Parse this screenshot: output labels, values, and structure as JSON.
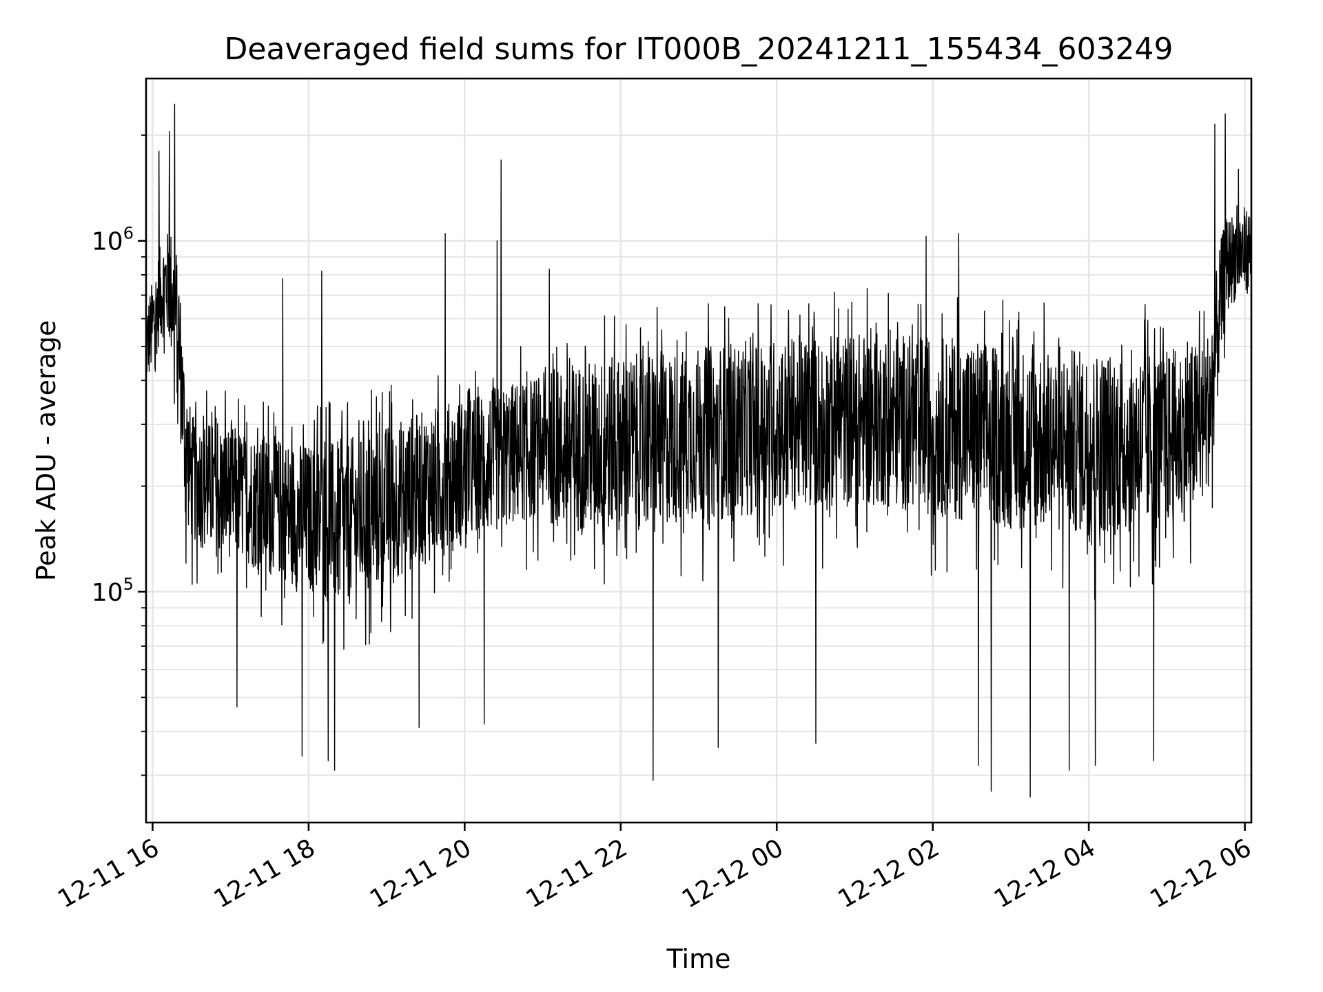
{
  "chart_data": {
    "type": "line",
    "title": "Deaveraged field sums for IT000B_20241211_155434_603249",
    "xlabel": "Time",
    "ylabel": "Peak ADU - average",
    "y_scale": "log",
    "ylim": [
      22000,
      2900000
    ],
    "xlim": [
      "2024-12-11 15:55",
      "2024-12-12 06:05"
    ],
    "x_ticks": [
      {
        "value": "2024-12-11 16:00",
        "label": "12-11 16"
      },
      {
        "value": "2024-12-11 18:00",
        "label": "12-11 18"
      },
      {
        "value": "2024-12-11 20:00",
        "label": "12-11 20"
      },
      {
        "value": "2024-12-11 22:00",
        "label": "12-11 22"
      },
      {
        "value": "2024-12-12 00:00",
        "label": "12-12 00"
      },
      {
        "value": "2024-12-12 02:00",
        "label": "12-12 02"
      },
      {
        "value": "2024-12-12 04:00",
        "label": "12-12 04"
      },
      {
        "value": "2024-12-12 06:00",
        "label": "12-12 06"
      }
    ],
    "y_ticks": [
      {
        "value": 100000,
        "base": "10",
        "exp": "5"
      },
      {
        "value": 1000000,
        "base": "10",
        "exp": "6"
      }
    ],
    "grid": true,
    "series": [
      {
        "color": "#000000",
        "x": [
          "2024-12-11 15:55",
          "2024-12-11 16:00",
          "2024-12-11 16:05",
          "2024-12-11 16:10",
          "2024-12-11 16:15",
          "2024-12-11 16:20",
          "2024-12-11 16:25",
          "2024-12-11 16:30",
          "2024-12-11 16:40",
          "2024-12-11 16:50",
          "2024-12-11 17:00",
          "2024-12-11 17:10",
          "2024-12-11 17:20",
          "2024-12-11 17:30",
          "2024-12-11 17:40",
          "2024-12-11 17:50",
          "2024-12-11 18:00",
          "2024-12-11 18:10",
          "2024-12-11 18:20",
          "2024-12-11 18:30",
          "2024-12-11 18:40",
          "2024-12-11 18:50",
          "2024-12-11 19:00",
          "2024-12-11 19:10",
          "2024-12-11 19:20",
          "2024-12-11 19:30",
          "2024-12-11 19:40",
          "2024-12-11 19:50",
          "2024-12-11 20:00",
          "2024-12-11 20:10",
          "2024-12-11 20:20",
          "2024-12-11 20:30",
          "2024-12-11 20:40",
          "2024-12-11 20:50",
          "2024-12-11 21:00",
          "2024-12-11 21:10",
          "2024-12-11 21:20",
          "2024-12-11 21:40",
          "2024-12-11 22:00",
          "2024-12-11 22:20",
          "2024-12-11 22:40",
          "2024-12-11 23:00",
          "2024-12-11 23:20",
          "2024-12-11 23:40",
          "2024-12-12 00:00",
          "2024-12-12 00:20",
          "2024-12-12 00:40",
          "2024-12-12 01:00",
          "2024-12-12 01:20",
          "2024-12-12 01:40",
          "2024-12-12 02:00",
          "2024-12-12 02:20",
          "2024-12-12 02:40",
          "2024-12-12 03:00",
          "2024-12-12 03:20",
          "2024-12-12 03:40",
          "2024-12-12 04:00",
          "2024-12-12 04:20",
          "2024-12-12 04:40",
          "2024-12-12 05:00",
          "2024-12-12 05:10",
          "2024-12-12 05:20",
          "2024-12-12 05:30",
          "2024-12-12 05:35",
          "2024-12-12 05:40",
          "2024-12-12 05:45",
          "2024-12-12 05:50",
          "2024-12-12 05:55",
          "2024-12-12 06:00",
          "2024-12-12 06:05"
        ],
        "low": [
          380000,
          420000,
          500000,
          550000,
          450000,
          330000,
          160000,
          140000,
          130000,
          125000,
          125000,
          120000,
          115000,
          110000,
          110000,
          100000,
          100000,
          95000,
          90000,
          90000,
          95000,
          100000,
          105000,
          110000,
          115000,
          120000,
          125000,
          130000,
          135000,
          140000,
          145000,
          150000,
          155000,
          160000,
          165000,
          150000,
          145000,
          145000,
          150000,
          150000,
          155000,
          160000,
          160000,
          165000,
          170000,
          170000,
          170000,
          175000,
          175000,
          170000,
          165000,
          160000,
          155000,
          150000,
          150000,
          145000,
          145000,
          145000,
          145000,
          150000,
          155000,
          165000,
          180000,
          230000,
          380000,
          600000,
          660000,
          680000,
          700000,
          720000
        ],
        "high": [
          650000,
          780000,
          950000,
          1050000,
          1100000,
          900000,
          430000,
          320000,
          310000,
          300000,
          300000,
          290000,
          285000,
          280000,
          275000,
          270000,
          265000,
          265000,
          270000,
          275000,
          280000,
          290000,
          300000,
          310000,
          320000,
          330000,
          340000,
          350000,
          360000,
          370000,
          380000,
          390000,
          400000,
          410000,
          420000,
          430000,
          450000,
          460000,
          470000,
          480000,
          490000,
          500000,
          510000,
          520000,
          530000,
          540000,
          540000,
          550000,
          550000,
          545000,
          540000,
          530000,
          520000,
          510000,
          500000,
          495000,
          490000,
          490000,
          490000,
          495000,
          500000,
          510000,
          530000,
          650000,
          950000,
          1150000,
          1200000,
          1250000,
          1250000,
          1250000
        ],
        "spikes": [
          {
            "x": "2024-12-11 16:05",
            "y": 1800000
          },
          {
            "x": "2024-12-11 16:13",
            "y": 2050000
          },
          {
            "x": "2024-12-11 16:17",
            "y": 2450000
          },
          {
            "x": "2024-12-11 17:40",
            "y": 780000
          },
          {
            "x": "2024-12-11 18:10",
            "y": 820000
          },
          {
            "x": "2024-12-11 19:45",
            "y": 1050000
          },
          {
            "x": "2024-12-11 20:25",
            "y": 1000000
          },
          {
            "x": "2024-12-11 20:28",
            "y": 1700000
          },
          {
            "x": "2024-12-11 21:05",
            "y": 830000
          },
          {
            "x": "2024-12-12 01:55",
            "y": 1030000
          },
          {
            "x": "2024-12-12 02:20",
            "y": 1050000
          },
          {
            "x": "2024-12-12 05:37",
            "y": 2150000
          },
          {
            "x": "2024-12-12 05:45",
            "y": 2300000
          },
          {
            "x": "2024-12-12 05:55",
            "y": 1600000
          }
        ],
        "dips": [
          {
            "x": "2024-12-11 17:05",
            "y": 47000
          },
          {
            "x": "2024-12-11 17:55",
            "y": 34000
          },
          {
            "x": "2024-12-11 18:15",
            "y": 33000
          },
          {
            "x": "2024-12-11 18:20",
            "y": 31000
          },
          {
            "x": "2024-12-11 19:25",
            "y": 41000
          },
          {
            "x": "2024-12-11 20:15",
            "y": 42000
          },
          {
            "x": "2024-12-11 22:25",
            "y": 29000
          },
          {
            "x": "2024-12-11 23:15",
            "y": 36000
          },
          {
            "x": "2024-12-12 00:30",
            "y": 37000
          },
          {
            "x": "2024-12-12 02:35",
            "y": 32000
          },
          {
            "x": "2024-12-12 02:45",
            "y": 27000
          },
          {
            "x": "2024-12-12 03:15",
            "y": 26000
          },
          {
            "x": "2024-12-12 03:45",
            "y": 31000
          },
          {
            "x": "2024-12-12 04:05",
            "y": 32000
          },
          {
            "x": "2024-12-12 04:50",
            "y": 33000
          }
        ]
      }
    ]
  }
}
